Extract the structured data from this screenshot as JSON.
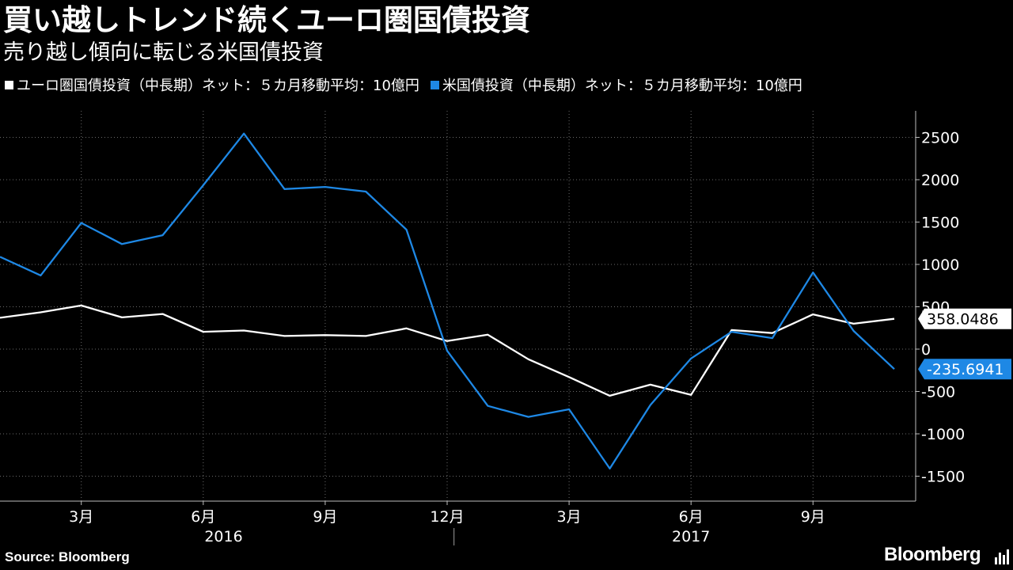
{
  "title": "買い越しトレンド続くユーロ圏国債投資",
  "subtitle": "売り越し傾向に転じる米国債投資",
  "legend": [
    {
      "label": "ユーロ圏国債投資（中長期）ネット：５カ月移動平均：10億円",
      "color": "#ffffff"
    },
    {
      "label": "米国債投資（中長期）ネット：５カ月移動平均：10億円",
      "color": "#1e88e5"
    }
  ],
  "footer": {
    "source": "Source: Bloomberg",
    "brand": "Bloomberg",
    "brand_icon": "bloomberg-logo-icon"
  },
  "chart_data": {
    "type": "line",
    "x": [
      "2016-01",
      "2016-02",
      "2016-03",
      "2016-04",
      "2016-05",
      "2016-06",
      "2016-07",
      "2016-08",
      "2016-09",
      "2016-10",
      "2016-11",
      "2016-12",
      "2017-01",
      "2017-02",
      "2017-03",
      "2017-04",
      "2017-05",
      "2017-06",
      "2017-07",
      "2017-08",
      "2017-09",
      "2017-10",
      "2017-11"
    ],
    "series": [
      {
        "name": "ユーロ圏国債投資（中長期）ネット：５カ月移動平均：10億円",
        "color": "#ffffff",
        "values": [
          370,
          435,
          515,
          375,
          415,
          205,
          220,
          155,
          165,
          155,
          245,
          95,
          170,
          -120,
          -330,
          -550,
          -420,
          -540,
          225,
          190,
          410,
          300,
          358.0486
        ]
      },
      {
        "name": "米国債投資（中長期）ネット：５カ月移動平均：10億円",
        "color": "#1e88e5",
        "values": [
          1090,
          870,
          1490,
          1240,
          1345,
          1935,
          2545,
          1890,
          1915,
          1860,
          1410,
          -20,
          -670,
          -800,
          -710,
          -1410,
          -660,
          -110,
          205,
          130,
          905,
          215,
          -235.6941
        ]
      }
    ],
    "last_value_labels": [
      "358.0486",
      "-235.6941"
    ],
    "y_ticks": [
      "2500",
      "2000",
      "1500",
      "1000",
      "500",
      "0",
      "-500",
      "-1000",
      "-1500"
    ],
    "x_ticks": [
      "3月",
      "6月",
      "9月",
      "12月",
      "3月",
      "6月",
      "9月"
    ],
    "year_labels": [
      "2016",
      "2017"
    ],
    "ylim": [
      -1800,
      2850
    ],
    "y_axis_side": "right",
    "grid": true
  }
}
